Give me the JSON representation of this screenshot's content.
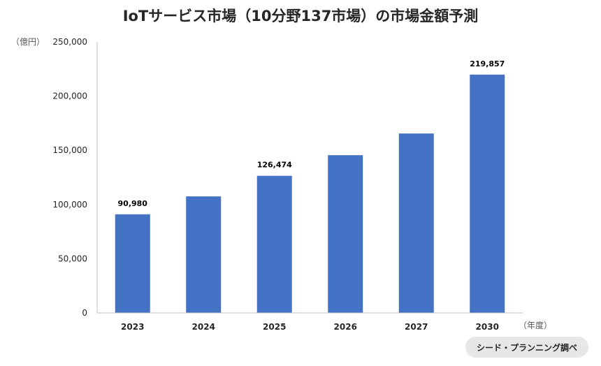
{
  "chart_data": {
    "type": "bar",
    "title": "IoTサービス市場（10分野137市場）の市場金額予測",
    "ylabel": "（億円）",
    "xlabel": "（年度）",
    "categories": [
      "2023",
      "2024",
      "2025",
      "2026",
      "2027",
      "2030"
    ],
    "values": [
      90980,
      107500,
      126474,
      145500,
      165500,
      219857
    ],
    "data_labels": [
      "90,980",
      "",
      "126,474",
      "",
      "",
      "219,857"
    ],
    "ylim": [
      0,
      250000
    ],
    "yticks": [
      0,
      50000,
      100000,
      150000,
      200000,
      250000
    ],
    "ytick_labels": [
      "0",
      "50,000",
      "100,000",
      "150,000",
      "200,000",
      "250,000"
    ],
    "bar_color": "#4472c4",
    "grid": false
  },
  "source": "シード・プランニング調べ"
}
